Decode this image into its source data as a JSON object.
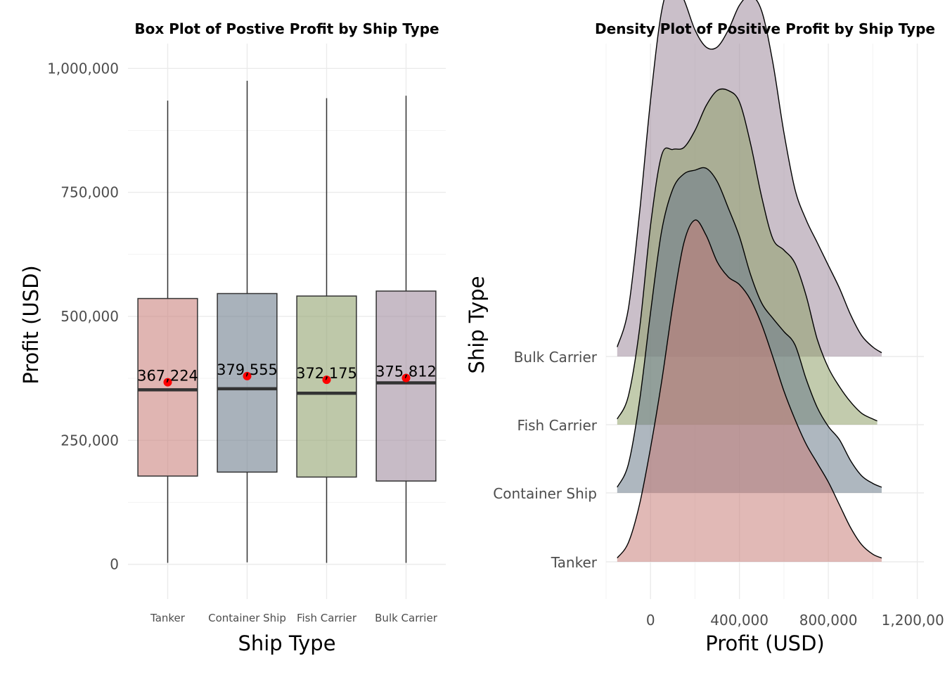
{
  "chart_data": [
    {
      "type": "box",
      "title": "Box Plot of Postive  Profit by Ship Type",
      "xlabel": "Ship Type",
      "ylabel": "Profit (USD)",
      "ylim": [
        -70000,
        1050000
      ],
      "yticks": [
        0,
        250000,
        500000,
        750000,
        1000000
      ],
      "ytick_labels": [
        "0",
        "250,000",
        "500,000",
        "750,000",
        "1,000,000"
      ],
      "grid": true,
      "categories": [
        "Tanker",
        "Container Ship",
        "Fish Carrier",
        "Bulk Carrier"
      ],
      "boxes": [
        {
          "category": "Tanker",
          "min": 3000,
          "q1": 178000,
          "median": 352000,
          "q3": 536000,
          "max": 935000,
          "mean": 367224,
          "mean_label": "367,224",
          "color": "#c9807a"
        },
        {
          "category": "Container Ship",
          "min": 4000,
          "q1": 186000,
          "median": 354000,
          "q3": 546000,
          "max": 975000,
          "mean": 379555,
          "mean_label": "379,555",
          "color": "#6b7b8a"
        },
        {
          "category": "Fish Carrier",
          "min": 3000,
          "q1": 176000,
          "median": 345000,
          "q3": 541000,
          "max": 940000,
          "mean": 372175,
          "mean_label": "372,175",
          "color": "#8fa06a"
        },
        {
          "category": "Bulk Carrier",
          "min": 3000,
          "q1": 168000,
          "median": 366000,
          "q3": 551000,
          "max": 945000,
          "mean": 375812,
          "mean_label": "375,812",
          "color": "#9e8a9c"
        }
      ],
      "mean_point_color": "#ff0000"
    },
    {
      "type": "ridgeline",
      "title": "Density Plot of Positive Profit by Ship Type",
      "xlabel": "Profit (USD)",
      "ylabel": "Ship Type",
      "xlim": [
        -200000,
        1230000
      ],
      "xticks": [
        0,
        400000,
        800000,
        1200000
      ],
      "xtick_labels": [
        "0",
        "400,000",
        "800,000",
        "1,200,000"
      ],
      "grid": true,
      "categories": [
        "Tanker",
        "Container Ship",
        "Fish Carrier",
        "Bulk Carrier"
      ],
      "series": [
        {
          "name": "Tanker",
          "color": "#c9807a",
          "x": [
            -150000,
            -100000,
            -50000,
            0,
            50000,
            100000,
            150000,
            200000,
            250000,
            300000,
            350000,
            400000,
            450000,
            500000,
            550000,
            600000,
            650000,
            700000,
            750000,
            800000,
            850000,
            900000,
            950000,
            1000000,
            1040000
          ],
          "density": [
            0.02,
            0.1,
            0.3,
            0.6,
            0.95,
            1.35,
            1.68,
            1.8,
            1.72,
            1.58,
            1.5,
            1.46,
            1.38,
            1.25,
            1.08,
            0.9,
            0.75,
            0.62,
            0.52,
            0.42,
            0.3,
            0.18,
            0.09,
            0.04,
            0.02
          ]
        },
        {
          "name": "Container Ship",
          "color": "#6b7b8a",
          "x": [
            -150000,
            -100000,
            -50000,
            0,
            50000,
            100000,
            150000,
            200000,
            250000,
            300000,
            350000,
            400000,
            450000,
            500000,
            550000,
            600000,
            650000,
            700000,
            750000,
            800000,
            850000,
            900000,
            950000,
            1000000,
            1040000
          ],
          "density": [
            0.03,
            0.15,
            0.48,
            0.95,
            1.38,
            1.6,
            1.68,
            1.7,
            1.71,
            1.64,
            1.5,
            1.35,
            1.15,
            1.0,
            0.92,
            0.85,
            0.78,
            0.6,
            0.45,
            0.35,
            0.28,
            0.17,
            0.09,
            0.05,
            0.03
          ]
        },
        {
          "name": "Fish Carrier",
          "color": "#8fa06a",
          "x": [
            -150000,
            -100000,
            -50000,
            0,
            50000,
            100000,
            150000,
            200000,
            250000,
            300000,
            350000,
            400000,
            450000,
            500000,
            550000,
            600000,
            650000,
            700000,
            750000,
            800000,
            850000,
            900000,
            950000,
            1000000,
            1020000
          ],
          "density": [
            0.03,
            0.15,
            0.5,
            1.05,
            1.42,
            1.45,
            1.46,
            1.55,
            1.68,
            1.76,
            1.76,
            1.7,
            1.48,
            1.2,
            0.98,
            0.92,
            0.85,
            0.68,
            0.45,
            0.3,
            0.2,
            0.12,
            0.06,
            0.03,
            0.02
          ]
        },
        {
          "name": "Bulk Carrier",
          "color": "#9e8a9c",
          "x": [
            -150000,
            -100000,
            -50000,
            0,
            50000,
            100000,
            150000,
            200000,
            250000,
            300000,
            350000,
            400000,
            450000,
            500000,
            550000,
            600000,
            650000,
            700000,
            750000,
            800000,
            850000,
            900000,
            950000,
            1000000,
            1040000
          ],
          "density": [
            0.05,
            0.25,
            0.75,
            1.35,
            1.82,
            1.98,
            1.88,
            1.72,
            1.63,
            1.63,
            1.72,
            1.85,
            1.9,
            1.82,
            1.55,
            1.18,
            0.88,
            0.72,
            0.6,
            0.48,
            0.36,
            0.22,
            0.11,
            0.05,
            0.02
          ]
        }
      ]
    }
  ]
}
